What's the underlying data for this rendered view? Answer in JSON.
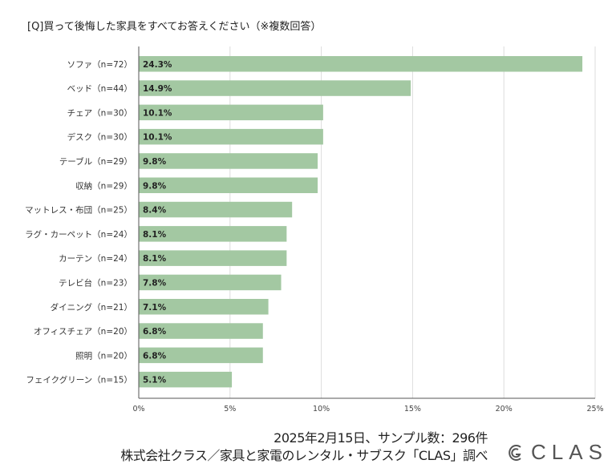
{
  "chart_data": {
    "type": "bar",
    "orientation": "horizontal",
    "title": "[Q]買って後悔した家具をすべてお答えください（※複数回答）",
    "categories": [
      "ソファ（n=72）",
      "ベッド（n=44）",
      "チェア（n=30）",
      "デスク（n=30）",
      "テーブル（n=29）",
      "収納（n=29）",
      "マットレス・布団（n=25）",
      "ラグ・カーペット（n=24）",
      "カーテン（n=24）",
      "テレビ台（n=23）",
      "ダイニング（n=21）",
      "オフィスチェア（n=20）",
      "照明（n=20）",
      "フェイクグリーン（n=15）"
    ],
    "values": [
      24.3,
      14.9,
      10.1,
      10.1,
      9.8,
      9.8,
      8.4,
      8.1,
      8.1,
      7.8,
      7.1,
      6.8,
      6.8,
      5.1
    ],
    "value_labels": [
      "24.3%",
      "14.9%",
      "10.1%",
      "10.1%",
      "9.8%",
      "9.8%",
      "8.4%",
      "8.1%",
      "8.1%",
      "7.8%",
      "7.1%",
      "6.8%",
      "6.8%",
      "5.1%"
    ],
    "xlim": [
      0,
      25
    ],
    "xticks": [
      0,
      5,
      10,
      15,
      20,
      25
    ],
    "xtick_labels": [
      "0%",
      "5%",
      "10%",
      "15%",
      "20%",
      "25%"
    ],
    "xlabel": "",
    "ylabel": "",
    "grid": true,
    "bar_color": "#a3c8a2"
  },
  "footer": {
    "line1": "2025年2月15日、サンプル数：296件",
    "line2": "株式会社クラス／家具と家電のレンタル・サブスク「CLAS」調べ"
  },
  "logo": {
    "text": "CLAS",
    "icon": "clas-logo-icon",
    "color": "#555555"
  }
}
